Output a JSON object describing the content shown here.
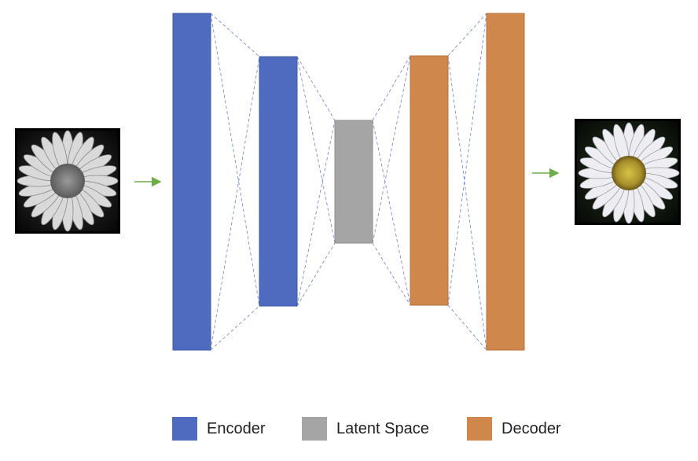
{
  "colors": {
    "encoder": "#4f6bbf",
    "latent": "#a5a5a5",
    "decoder": "#d0874b",
    "connector": "#6c7fd0",
    "arrow": "#70ad47"
  },
  "images": {
    "input": "grayscale-daisy-image",
    "output": "color-daisy-image"
  },
  "legend": {
    "encoder": "Encoder",
    "latent": "Latent Space",
    "decoder": "Decoder"
  }
}
